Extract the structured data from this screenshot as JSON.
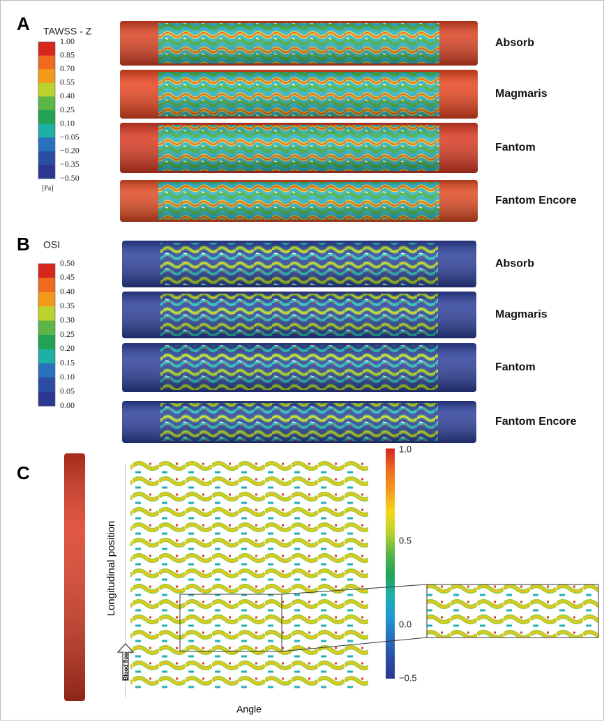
{
  "panel_a": {
    "label": "A",
    "colorbar_title": "TAWSS - Z",
    "colorbar_ticks": [
      "1.00",
      "0.85",
      "0.70",
      "0.55",
      "0.40",
      "0.25",
      "0.10",
      "−0.05",
      "−0.20",
      "−0.35",
      "−0.50"
    ],
    "colorbar_unit": "[Pa]",
    "stents": [
      "Absorb",
      "Magmaris",
      "Fantom",
      "Fantom Encore"
    ]
  },
  "panel_b": {
    "label": "B",
    "colorbar_title": "OSI",
    "colorbar_ticks": [
      "0.50",
      "0.45",
      "0.40",
      "0.35",
      "0.30",
      "0.25",
      "0.20",
      "0.15",
      "0.10",
      "0.05",
      "0.00"
    ],
    "stents": [
      "Absorb",
      "Magmaris",
      "Fantom",
      "Fantom Encore"
    ]
  },
  "panel_c": {
    "label": "C",
    "y_axis_label": "Longitudinal position",
    "x_axis_label": "Angle",
    "arrow_label": "Blood flow",
    "colorbar_ticks": [
      "1.0",
      "0.5",
      "0.0",
      "−0.5"
    ]
  }
}
